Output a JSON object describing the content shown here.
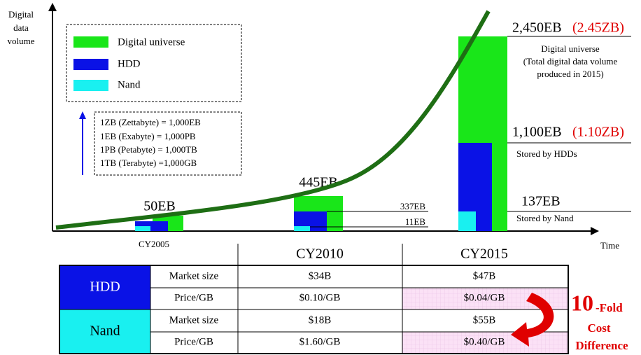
{
  "y_axis_label": [
    "Digital",
    "data",
    "volume"
  ],
  "x_axis_label": "Time",
  "legend": [
    "Digital universe",
    "HDD",
    "Nand"
  ],
  "units": [
    "1ZB (Zettabyte) = 1,000EB",
    "1EB (Exabyte)  = 1,000PB",
    "1PB (Petabyte) = 1,000TB",
    "1TB (Terabyte) =1,000GB"
  ],
  "cy2005": {
    "year": "CY2005",
    "total": "50EB"
  },
  "cy2010": {
    "total": "445EB",
    "hdd": "337EB",
    "nand": "11EB"
  },
  "cy2015": {
    "total": "2,450EB",
    "total_zb": "(2.45ZB)",
    "total_note": [
      "Digital universe",
      "(Total digital data volume",
      "produced in 2015)"
    ],
    "hdd": "1,100EB",
    "hdd_zb": "(1.10ZB)",
    "hdd_note": "Stored by HDDs",
    "nand": "137EB",
    "nand_note": "Stored by Nand"
  },
  "table": {
    "header": [
      "CY2010",
      "CY2015"
    ],
    "groups": [
      {
        "name": "HDD",
        "rows": [
          [
            "Market size",
            "$34B",
            "$47B"
          ],
          [
            "Price/GB",
            "$0.10/GB",
            "$0.04/GB"
          ]
        ]
      },
      {
        "name": "Nand",
        "rows": [
          [
            "Market size",
            "$18B",
            "$55B"
          ],
          [
            "Price/GB",
            "$1.60/GB",
            "$0.40/GB"
          ]
        ]
      }
    ]
  },
  "callout": [
    "10",
    "-Fold",
    "Cost",
    "Difference"
  ]
}
